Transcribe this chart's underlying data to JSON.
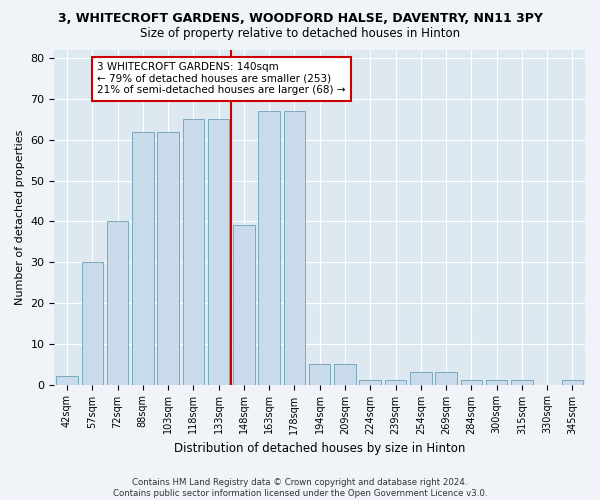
{
  "title": "3, WHITECROFT GARDENS, WOODFORD HALSE, DAVENTRY, NN11 3PY",
  "subtitle": "Size of property relative to detached houses in Hinton",
  "xlabel": "Distribution of detached houses by size in Hinton",
  "ylabel": "Number of detached properties",
  "bar_color": "#c9daea",
  "bar_edge_color": "#7aaabf",
  "bg_color": "#dde8f0",
  "grid_color": "#ffffff",
  "categories": [
    "42sqm",
    "57sqm",
    "72sqm",
    "88sqm",
    "103sqm",
    "118sqm",
    "133sqm",
    "148sqm",
    "163sqm",
    "178sqm",
    "194sqm",
    "209sqm",
    "224sqm",
    "239sqm",
    "254sqm",
    "269sqm",
    "284sqm",
    "300sqm",
    "315sqm",
    "330sqm",
    "345sqm"
  ],
  "bar_heights": [
    2,
    30,
    40,
    62,
    62,
    65,
    65,
    39,
    67,
    67,
    5,
    5,
    1,
    1,
    3,
    3,
    1,
    1,
    1,
    0,
    1
  ],
  "ylim": [
    0,
    82
  ],
  "yticks": [
    0,
    10,
    20,
    30,
    40,
    50,
    60,
    70,
    80
  ],
  "vline_color": "#cc0000",
  "annotation_text": "3 WHITECROFT GARDENS: 140sqm\n← 79% of detached houses are smaller (253)\n21% of semi-detached houses are larger (68) →",
  "annotation_box_color": "#cc0000",
  "footer": "Contains HM Land Registry data © Crown copyright and database right 2024.\nContains public sector information licensed under the Open Government Licence v3.0.",
  "fig_bg": "#f0f4f8"
}
